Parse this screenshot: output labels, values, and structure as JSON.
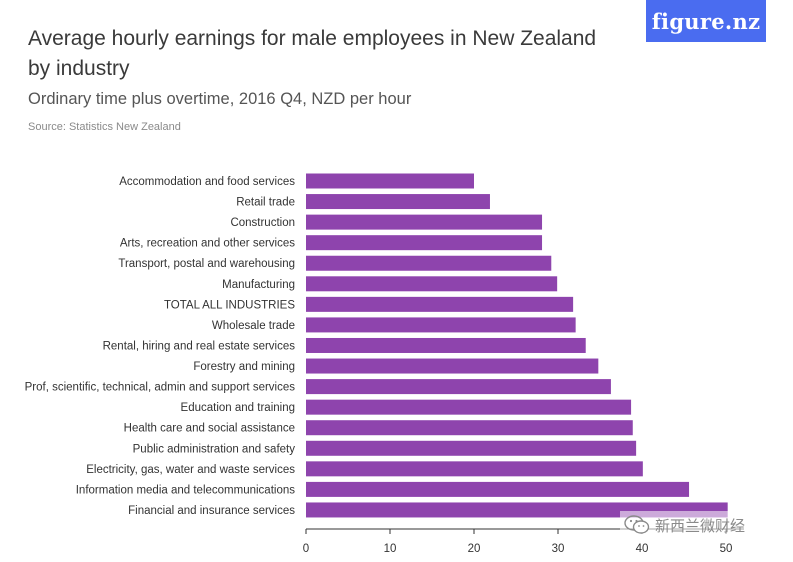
{
  "header": {
    "logo_text": "figure.nz",
    "logo_color": "#4a6cf0"
  },
  "watermark": {
    "text": "新西兰微财经",
    "icon": "wechat-icon"
  },
  "chart_data": {
    "type": "bar",
    "orientation": "horizontal",
    "title": "Average hourly earnings for male employees in New Zealand by industry",
    "subtitle": "Ordinary time plus overtime, 2016 Q4, NZD per hour",
    "source": "Source: Statistics New Zealand",
    "bar_color": "#8e44ad",
    "categories": [
      "Accommodation and food services",
      "Retail trade",
      "Construction",
      "Arts, recreation and other services",
      "Transport, postal and warehousing",
      "Manufacturing",
      "TOTAL ALL INDUSTRIES",
      "Wholesale trade",
      "Rental, hiring and real estate services",
      "Forestry and mining",
      "Prof, scientific, technical, admin and support services",
      "Education and training",
      "Health care and social assistance",
      "Public administration and safety",
      "Electricity, gas, water and waste services",
      "Information media and telecommunications",
      "Financial and insurance services"
    ],
    "values": [
      20.0,
      21.9,
      28.1,
      28.1,
      29.2,
      29.9,
      31.8,
      32.1,
      33.3,
      34.8,
      36.3,
      38.7,
      38.9,
      39.3,
      40.1,
      45.6,
      50.2
    ],
    "xlim": [
      0,
      50
    ],
    "xticks": [
      0,
      10,
      20,
      30,
      40,
      50
    ],
    "xlabel": "",
    "ylabel": "",
    "grid": false
  }
}
